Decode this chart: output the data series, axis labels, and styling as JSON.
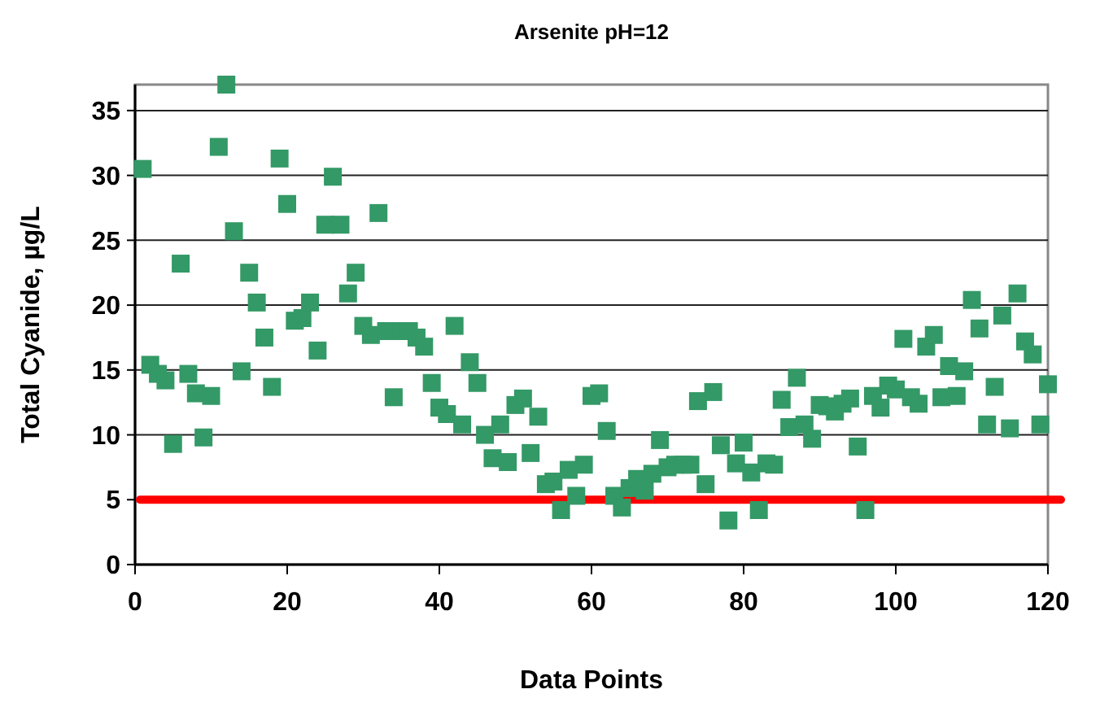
{
  "chart_data": {
    "type": "scatter",
    "title": "Arsenite pH=12",
    "xlabel": "Data Points",
    "ylabel": "Total Cyanide, µg/L",
    "xlim": [
      0,
      120
    ],
    "ylim": [
      0,
      37
    ],
    "xticks": [
      0,
      20,
      40,
      60,
      80,
      100,
      120
    ],
    "yticks": [
      0,
      5,
      10,
      15,
      20,
      25,
      30,
      35
    ],
    "grid": "y",
    "marker": "square",
    "ref_lines": [
      {
        "axis": "y",
        "value": 5,
        "color": "#ff0000"
      }
    ],
    "series": [
      {
        "color": "#339966",
        "x": [
          1,
          2,
          3,
          4,
          5,
          6,
          7,
          8,
          9,
          10,
          11,
          12,
          13,
          14,
          15,
          16,
          17,
          18,
          19,
          20,
          21,
          22,
          23,
          24,
          25,
          26,
          27,
          28,
          29,
          30,
          31,
          32,
          33,
          34,
          35,
          36,
          37,
          38,
          39,
          40,
          41,
          42,
          43,
          44,
          45,
          46,
          47,
          48,
          49,
          50,
          51,
          52,
          53,
          54,
          55,
          56,
          57,
          58,
          59,
          60,
          61,
          62,
          63,
          64,
          65,
          66,
          67,
          68,
          69,
          70,
          71,
          72,
          73,
          74,
          75,
          76,
          77,
          78,
          79,
          80,
          81,
          82,
          83,
          84,
          85,
          86,
          87,
          88,
          89,
          90,
          91,
          92,
          93,
          94,
          95,
          96,
          97,
          98,
          99,
          100,
          101,
          102,
          103,
          104,
          105,
          106,
          107,
          108,
          109,
          110,
          111,
          112,
          113,
          114,
          115,
          116,
          117,
          118,
          119,
          120
        ],
        "values": [
          30.5,
          15.4,
          14.7,
          14.2,
          9.3,
          23.2,
          14.7,
          13.2,
          9.8,
          13.0,
          32.2,
          37,
          25.7,
          14.9,
          22.5,
          20.2,
          17.5,
          13.7,
          31.3,
          27.8,
          18.8,
          19.0,
          20.2,
          16.5,
          26.2,
          29.9,
          26.2,
          20.9,
          22.5,
          18.4,
          17.7,
          27.1,
          18.0,
          12.9,
          18.0,
          18.0,
          17.5,
          16.8,
          14.0,
          12.1,
          11.6,
          18.4,
          10.8,
          15.6,
          14.0,
          10.0,
          8.2,
          10.8,
          7.9,
          12.3,
          12.8,
          8.6,
          11.4,
          6.2,
          6.4,
          4.2,
          7.3,
          5.3,
          7.7,
          13.0,
          13.2,
          10.3,
          5.3,
          4.4,
          5.9,
          6.6,
          5.7,
          7.0,
          9.6,
          7.5,
          7.7,
          7.7,
          7.7,
          12.6,
          6.2,
          13.3,
          9.2,
          3.4,
          7.8,
          9.4,
          7.1,
          4.2,
          7.8,
          7.7,
          12.7,
          10.6,
          14.4,
          10.8,
          9.7,
          12.3,
          12.2,
          11.8,
          12.4,
          12.8,
          9.1,
          4.2,
          13.0,
          12.1,
          13.8,
          13.5,
          17.4,
          12.9,
          12.4,
          16.8,
          17.7,
          12.9,
          15.3,
          13.0,
          14.9,
          20.4,
          18.2,
          10.8,
          13.7,
          19.2,
          10.5,
          20.9,
          17.2,
          16.2,
          10.8,
          13.9
        ]
      }
    ]
  }
}
